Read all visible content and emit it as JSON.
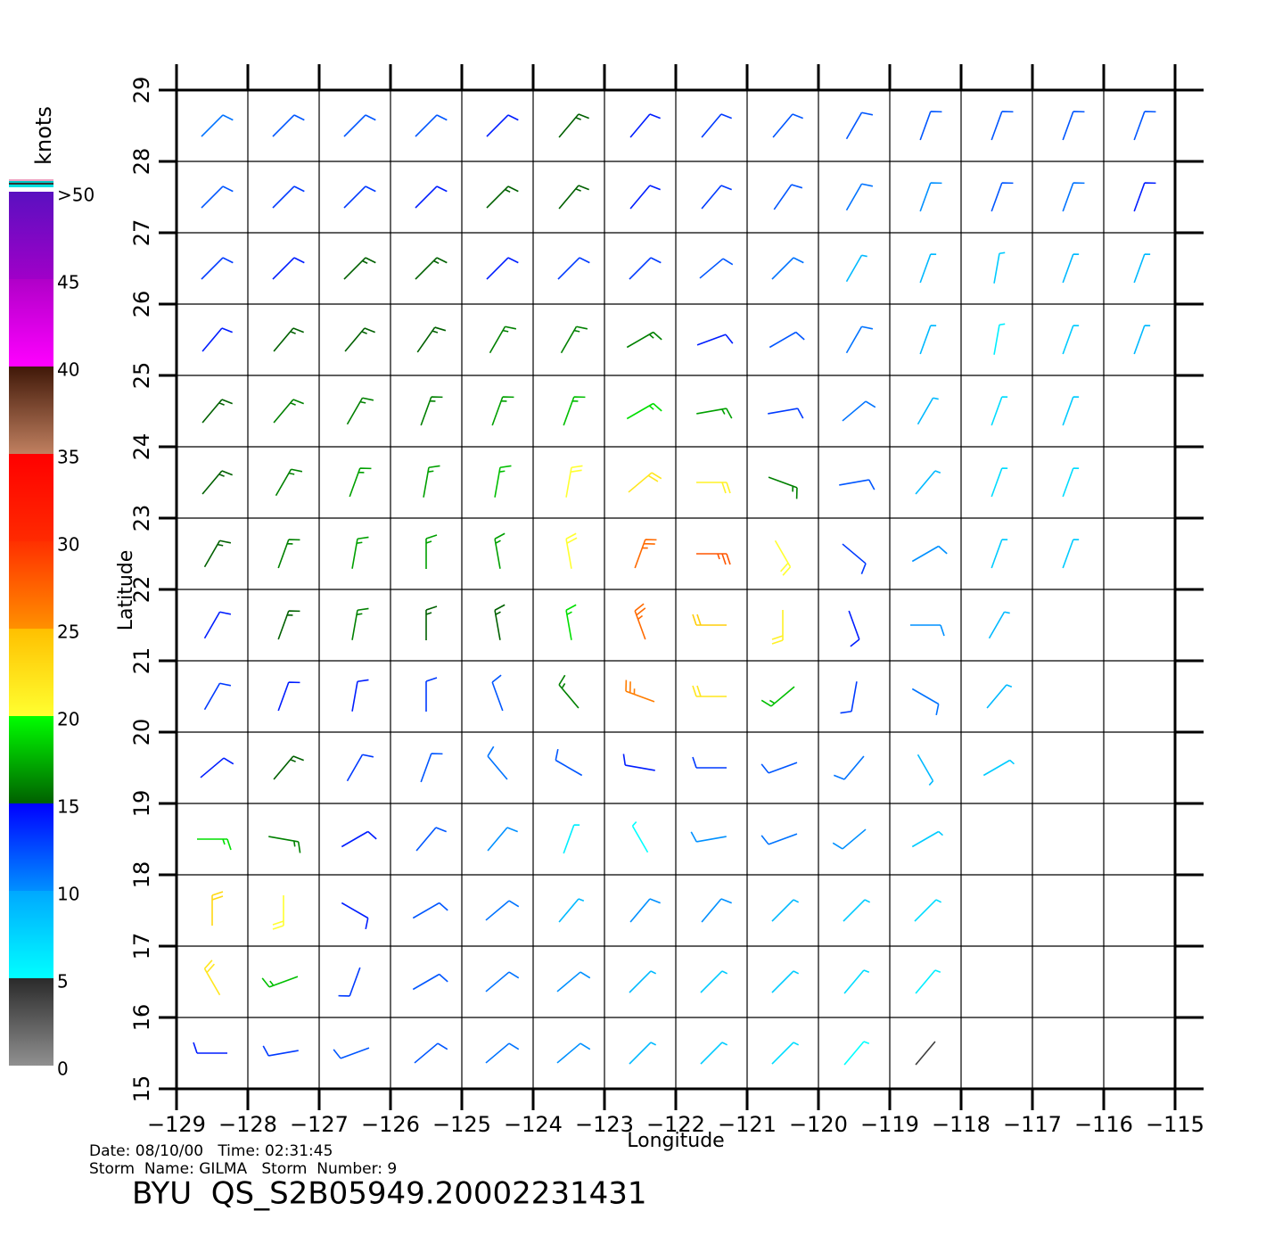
{
  "map": {
    "lonlim": [
      -129,
      -115
    ],
    "latlim": [
      15,
      29
    ],
    "lon_label": "Longitude",
    "lat_label": "Latitude",
    "lon_ticks": [
      {
        "value": -129,
        "label": "−129"
      },
      {
        "value": -128,
        "label": "−128"
      },
      {
        "value": -127,
        "label": "−127"
      },
      {
        "value": -126,
        "label": "−126"
      },
      {
        "value": -125,
        "label": "−125"
      },
      {
        "value": -124,
        "label": "−124"
      },
      {
        "value": -123,
        "label": "−123"
      },
      {
        "value": -122,
        "label": "−122"
      },
      {
        "value": -121,
        "label": "−121"
      },
      {
        "value": -120,
        "label": "−120"
      },
      {
        "value": -119,
        "label": "−119"
      },
      {
        "value": -118,
        "label": "−118"
      },
      {
        "value": -117,
        "label": "−117"
      },
      {
        "value": -116,
        "label": "−116"
      },
      {
        "value": -115,
        "label": "−115"
      }
    ],
    "lat_ticks": [
      15,
      16,
      17,
      18,
      19,
      20,
      21,
      22,
      23,
      24,
      25,
      26,
      27,
      28,
      29
    ],
    "wind": {
      "lons": [
        -128.5,
        -127.5,
        -126.5,
        -125.5,
        -124.5,
        -123.5,
        -122.5,
        -121.5,
        -120.5,
        -119.5,
        -118.5,
        -117.5,
        -116.5,
        -115.5
      ],
      "lats": [
        28.5,
        27.5,
        26.5,
        25.5,
        24.5,
        23.5,
        22.5,
        21.5,
        20.5,
        19.5,
        18.5,
        17.5,
        16.5,
        15.5
      ],
      "speed": [
        [
          11,
          12,
          12,
          12,
          14,
          15,
          14,
          13,
          12,
          12,
          12,
          12,
          12,
          12
        ],
        [
          12,
          13,
          13,
          14,
          15,
          15,
          14,
          13,
          12,
          11,
          10,
          12,
          11,
          14
        ],
        [
          13,
          14,
          15,
          15,
          14,
          13,
          13,
          12,
          11,
          9,
          9,
          8,
          9,
          9
        ],
        [
          14,
          15,
          15,
          15,
          16,
          16,
          16,
          14,
          12,
          11,
          9,
          6,
          8,
          9
        ],
        [
          15,
          16,
          16,
          16,
          17,
          18,
          19,
          17,
          13,
          11,
          9,
          7,
          8,
          null
        ],
        [
          15,
          16,
          17,
          17,
          18,
          20,
          22,
          21,
          16,
          12,
          9,
          7,
          7,
          null
        ],
        [
          15,
          16,
          17,
          17,
          17,
          20,
          27,
          28,
          20,
          13,
          10,
          8,
          8,
          null
        ],
        [
          14,
          15,
          16,
          15,
          15,
          19,
          27,
          24,
          21,
          14,
          10,
          9,
          null,
          null
        ],
        [
          13,
          14,
          14,
          13,
          12,
          16,
          26,
          22,
          18,
          13,
          11,
          9,
          null,
          null
        ],
        [
          14,
          15,
          13,
          12,
          11,
          12,
          14,
          13,
          12,
          11,
          9,
          8,
          null,
          null
        ],
        [
          19,
          16,
          14,
          12,
          10,
          6,
          5,
          10,
          11,
          10,
          8,
          null,
          null,
          null
        ],
        [
          23,
          20,
          14,
          12,
          11,
          9,
          10,
          10,
          9,
          8,
          7,
          null,
          null,
          null
        ],
        [
          22,
          18,
          13,
          12,
          11,
          10,
          9,
          8,
          8,
          7,
          6,
          null,
          null,
          null
        ],
        [
          14,
          13,
          12,
          12,
          11,
          10,
          9,
          8,
          7,
          5,
          4,
          null,
          null,
          null
        ]
      ],
      "direction": [
        [
          45,
          45,
          45,
          45,
          45,
          40,
          40,
          40,
          40,
          30,
          20,
          20,
          20,
          20
        ],
        [
          45,
          45,
          45,
          45,
          45,
          40,
          40,
          40,
          35,
          30,
          20,
          20,
          20,
          20
        ],
        [
          45,
          45,
          45,
          45,
          45,
          45,
          45,
          50,
          45,
          30,
          20,
          10,
          20,
          20
        ],
        [
          40,
          40,
          40,
          35,
          30,
          30,
          60,
          70,
          60,
          30,
          20,
          10,
          20,
          20
        ],
        [
          40,
          40,
          30,
          20,
          20,
          20,
          60,
          80,
          80,
          50,
          30,
          20,
          20,
          null
        ],
        [
          40,
          30,
          20,
          10,
          10,
          10,
          50,
          90,
          110,
          80,
          40,
          20,
          20,
          null
        ],
        [
          30,
          20,
          10,
          0,
          350,
          350,
          20,
          90,
          150,
          130,
          60,
          20,
          20,
          null
        ],
        [
          30,
          20,
          10,
          0,
          350,
          350,
          340,
          270,
          180,
          160,
          90,
          30,
          null,
          null
        ],
        [
          30,
          20,
          10,
          0,
          340,
          320,
          290,
          270,
          230,
          190,
          120,
          40,
          null,
          null
        ],
        [
          50,
          40,
          30,
          20,
          320,
          300,
          280,
          270,
          250,
          220,
          150,
          60,
          null,
          null
        ],
        [
          90,
          100,
          60,
          40,
          40,
          20,
          330,
          260,
          250,
          230,
          60,
          null,
          null,
          null
        ],
        [
          0,
          180,
          120,
          60,
          50,
          40,
          40,
          40,
          45,
          45,
          45,
          null,
          null,
          null
        ],
        [
          330,
          250,
          200,
          60,
          50,
          50,
          45,
          45,
          45,
          40,
          40,
          null,
          null,
          null
        ],
        [
          270,
          260,
          250,
          50,
          50,
          50,
          45,
          45,
          45,
          40,
          40,
          null,
          null,
          null
        ]
      ]
    }
  },
  "colorbar": {
    "label": "knots",
    "ticks": [
      0,
      5,
      10,
      15,
      20,
      25,
      30,
      35,
      40,
      45,
      {
        "value": 50,
        "label": ">50"
      }
    ],
    "colors": [
      [
        "#909090",
        "#2a2a2a"
      ],
      [
        "#00ffff",
        "#00a8ff"
      ],
      [
        "#0090ff",
        "#0000ff"
      ],
      [
        "#006000",
        "#00ff00"
      ],
      [
        "#ffff30",
        "#ffc000"
      ],
      [
        "#ff9000",
        "#ff3000"
      ],
      [
        "#ff2a00",
        "#ff0000"
      ],
      [
        "#c08060",
        "#401808"
      ],
      [
        "#ff00ff",
        "#b000c8"
      ],
      [
        "#a000c8",
        "#5a10c0"
      ]
    ]
  },
  "footer": {
    "line1": "Date: 08/10/00   Time: 02:31:45",
    "line2": "Storm  Name: GILMA   Storm  Number: 9",
    "title": "BYU  QS_S2B05949.20002231431"
  }
}
